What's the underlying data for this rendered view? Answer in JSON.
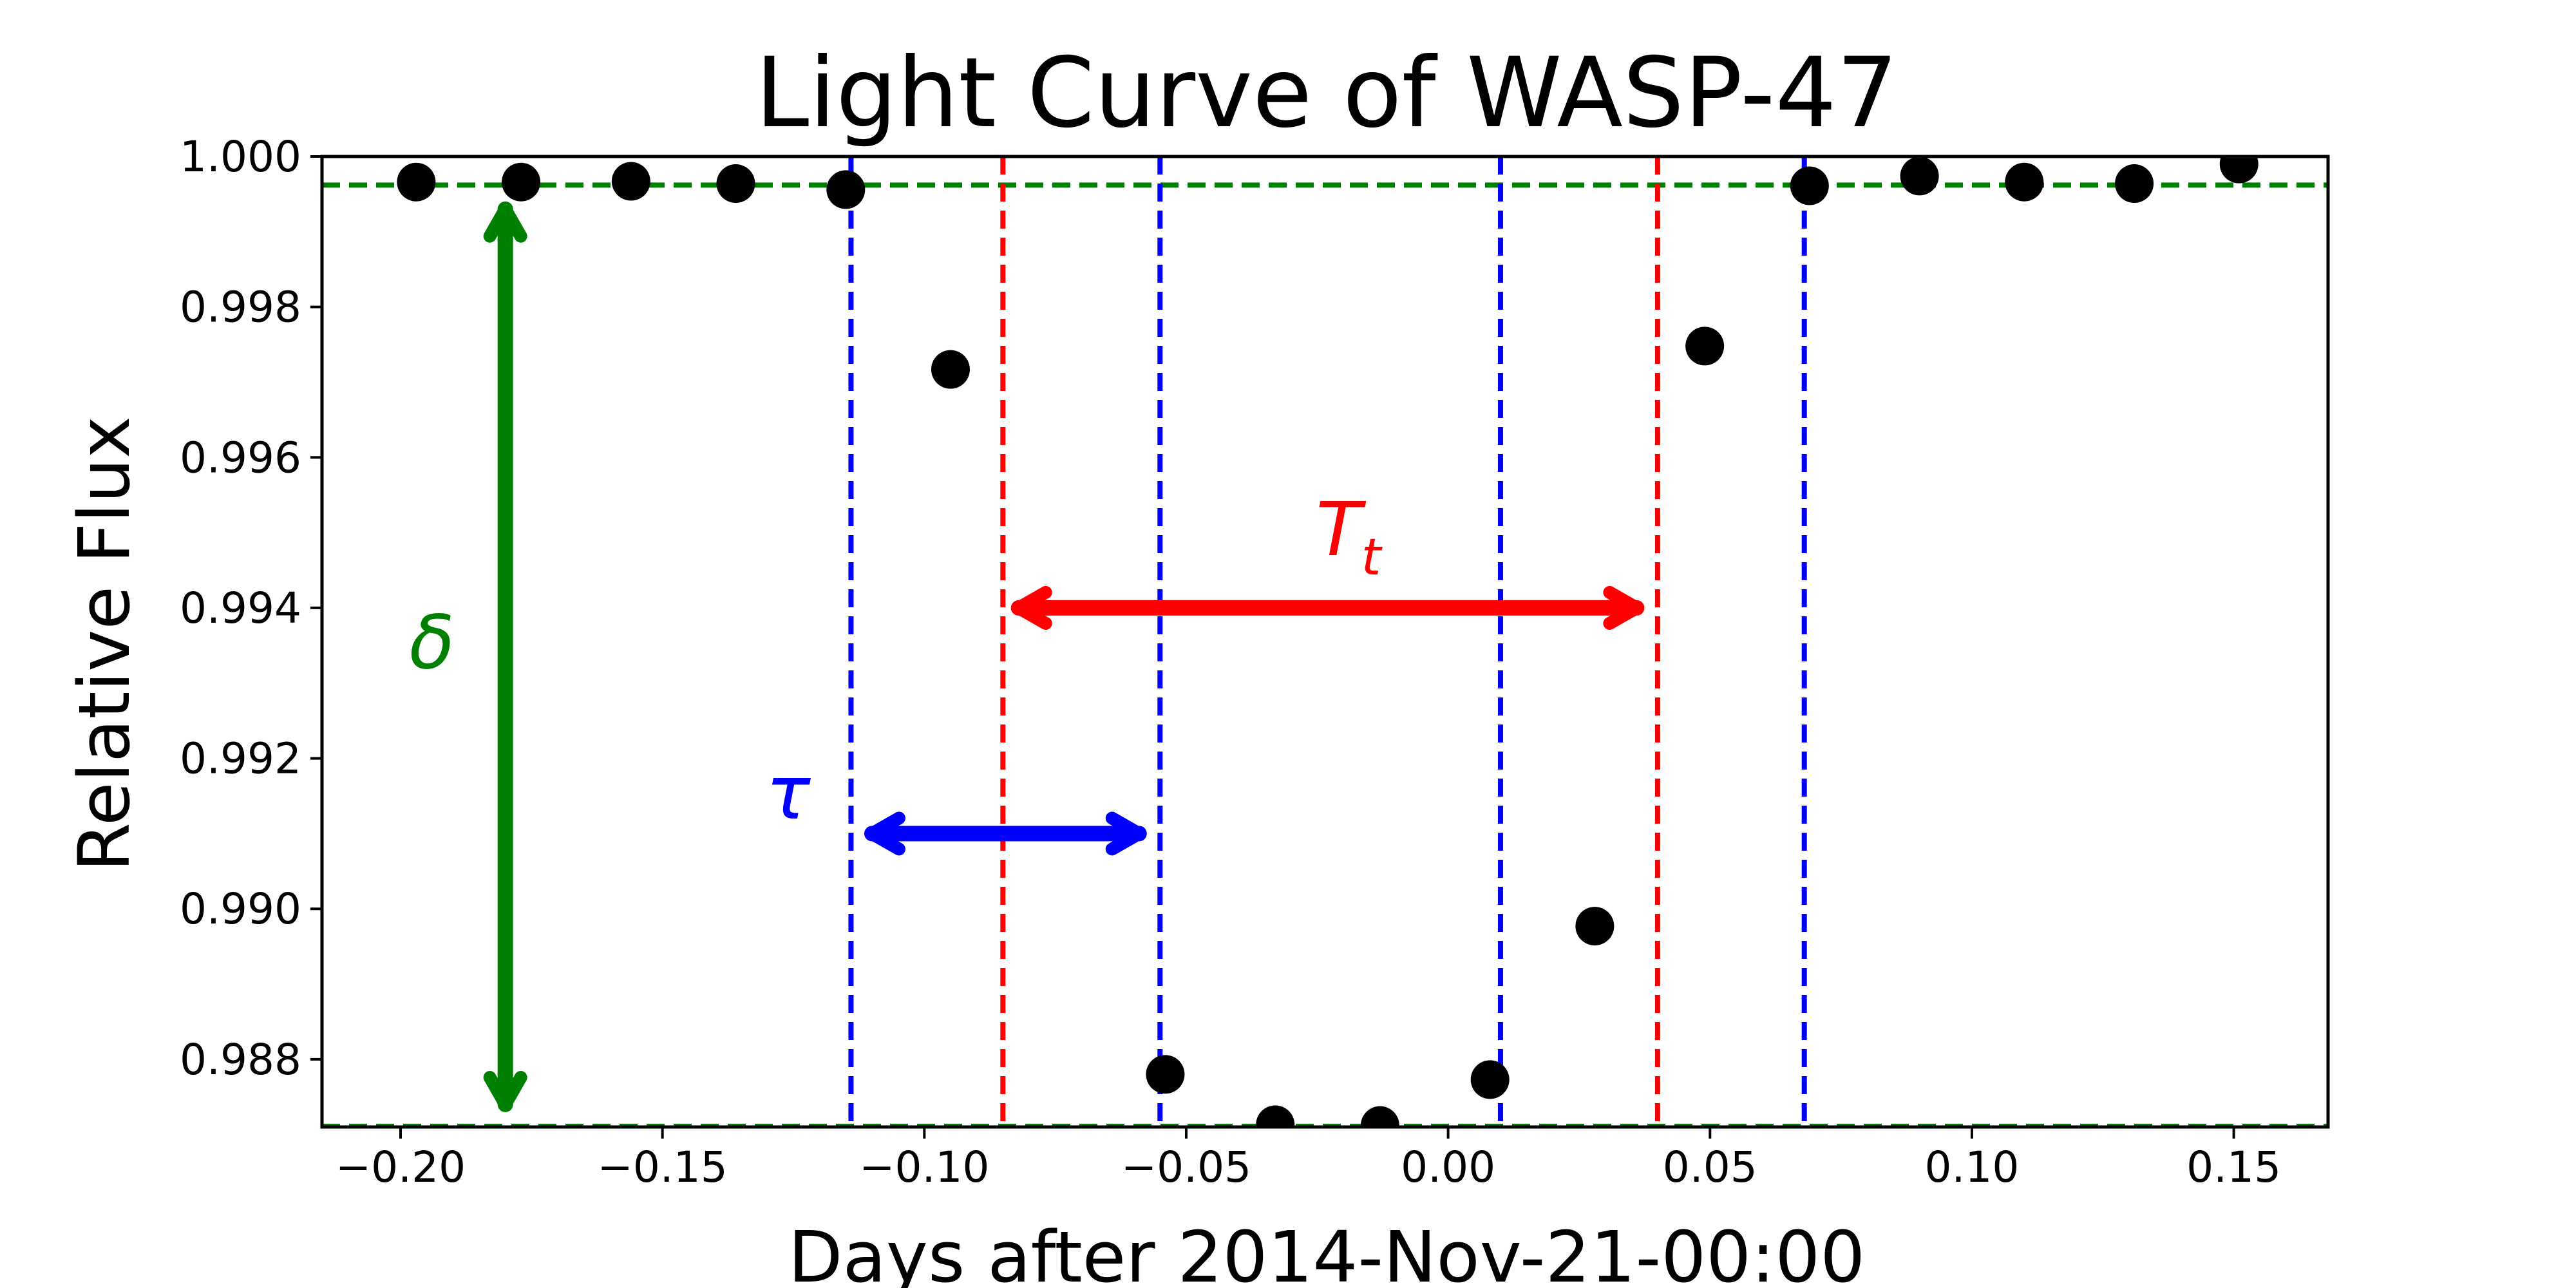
{
  "chart_data": {
    "type": "scatter",
    "title": "Light Curve of WASP-47",
    "xlabel": "Days after 2014-Nov-21-00:00",
    "ylabel": "Relative Flux",
    "xlim": [
      -0.215,
      0.168
    ],
    "ylim": [
      0.9871,
      1.0
    ],
    "grid": false,
    "x_ticks": [
      -0.2,
      -0.15,
      -0.1,
      -0.05,
      0.0,
      0.05,
      0.1,
      0.15
    ],
    "x_tick_labels": [
      "−0.20",
      "−0.15",
      "−0.10",
      "−0.05",
      "0.00",
      "0.05",
      "0.10",
      "0.15"
    ],
    "y_ticks": [
      0.988,
      0.99,
      0.992,
      0.994,
      0.996,
      0.998,
      1.0
    ],
    "y_tick_labels": [
      "0.988",
      "0.990",
      "0.992",
      "0.994",
      "0.996",
      "0.998",
      "1.000"
    ],
    "points": {
      "color": "#000000",
      "x": [
        -0.197,
        -0.177,
        -0.156,
        -0.136,
        -0.115,
        -0.095,
        -0.054,
        -0.033,
        -0.013,
        0.008,
        0.028,
        0.049,
        0.069,
        0.09,
        0.11,
        0.131,
        0.151
      ],
      "y": [
        0.99966,
        0.99966,
        0.99967,
        0.99964,
        0.99956,
        0.99717,
        0.9878,
        0.98713,
        0.98712,
        0.98773,
        0.98977,
        0.99748,
        0.99961,
        0.99974,
        0.99966,
        0.99964,
        0.9999
      ]
    },
    "reference_lines": [
      {
        "orientation": "horizontal",
        "value": 0.99962,
        "color": "#008000"
      },
      {
        "orientation": "horizontal",
        "value": 0.98711,
        "color": "#008000"
      },
      {
        "orientation": "vertical",
        "value": -0.114,
        "color": "#0000ff"
      },
      {
        "orientation": "vertical",
        "value": -0.055,
        "color": "#0000ff"
      },
      {
        "orientation": "vertical",
        "value": 0.01,
        "color": "#0000ff"
      },
      {
        "orientation": "vertical",
        "value": 0.068,
        "color": "#0000ff"
      },
      {
        "orientation": "vertical",
        "value": -0.085,
        "color": "#ff0000"
      },
      {
        "orientation": "vertical",
        "value": 0.04,
        "color": "#ff0000"
      }
    ],
    "annotations": [
      {
        "label": "δ",
        "color": "#008000",
        "arrow": {
          "orientation": "vertical",
          "x": -0.18,
          "from": 0.9874,
          "to": 0.9993
        },
        "label_at": {
          "x": -0.194,
          "y": 0.9932
        }
      },
      {
        "label": "τ",
        "color": "#0000ff",
        "arrow": {
          "orientation": "horizontal",
          "y": 0.991,
          "from": -0.11,
          "to": -0.059
        },
        "label_at": {
          "x": -0.126,
          "y": 0.9912
        }
      },
      {
        "label": "T",
        "sub": "t",
        "color": "#ff0000",
        "arrow": {
          "orientation": "horizontal",
          "y": 0.994,
          "from": -0.082,
          "to": 0.036
        },
        "label_at": {
          "x": -0.019,
          "y": 0.9947
        }
      }
    ]
  }
}
